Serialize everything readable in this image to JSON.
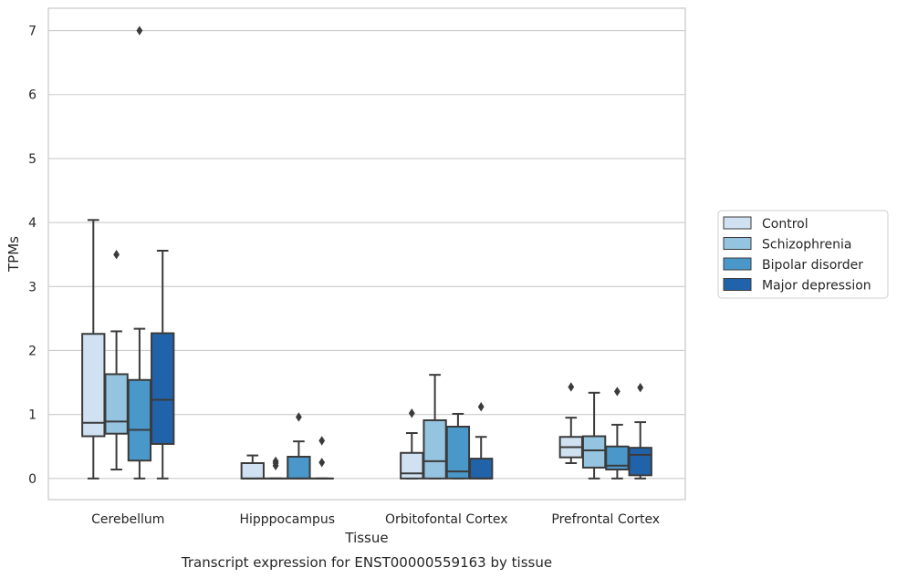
{
  "chart_data": {
    "type": "box",
    "caption": "Transcript expression for ENST00000559163 by tissue",
    "xlabel": "Tissue",
    "ylabel": "TPMs",
    "ylim": [
      -0.33,
      7.35
    ],
    "yticks": [
      0,
      1,
      2,
      3,
      4,
      5,
      6,
      7
    ],
    "grid": "horizontal",
    "legend_position": "right",
    "categories": [
      "Cerebellum",
      "Hipppocampus",
      "Orbitofontal Cortex",
      "Prefrontal Cortex"
    ],
    "series": [
      {
        "name": "Control",
        "color": "#d0e1f2",
        "boxes": [
          {
            "whislo": 0.0,
            "q1": 0.66,
            "med": 0.87,
            "q3": 2.26,
            "whishi": 4.04,
            "fliers": []
          },
          {
            "whislo": 0.0,
            "q1": 0.0,
            "med": 0.0,
            "q3": 0.24,
            "whishi": 0.36,
            "fliers": []
          },
          {
            "whislo": 0.0,
            "q1": 0.0,
            "med": 0.08,
            "q3": 0.4,
            "whishi": 0.71,
            "fliers": [
              1.02
            ]
          },
          {
            "whislo": 0.24,
            "q1": 0.33,
            "med": 0.49,
            "q3": 0.65,
            "whishi": 0.95,
            "fliers": [
              1.43
            ]
          }
        ]
      },
      {
        "name": "Schizophrenia",
        "color": "#94c4df",
        "boxes": [
          {
            "whislo": 0.14,
            "q1": 0.7,
            "med": 0.89,
            "q3": 1.63,
            "whishi": 2.3,
            "fliers": [
              3.5
            ]
          },
          {
            "whislo": 0.0,
            "q1": 0.0,
            "med": 0.0,
            "q3": 0.0,
            "whishi": 0.0,
            "fliers": [
              0.2,
              0.24,
              0.27
            ]
          },
          {
            "whislo": 0.0,
            "q1": 0.0,
            "med": 0.27,
            "q3": 0.91,
            "whishi": 1.62,
            "fliers": []
          },
          {
            "whislo": 0.0,
            "q1": 0.17,
            "med": 0.44,
            "q3": 0.66,
            "whishi": 1.34,
            "fliers": []
          }
        ]
      },
      {
        "name": "Bipolar disorder",
        "color": "#4a98c9",
        "boxes": [
          {
            "whislo": 0.0,
            "q1": 0.28,
            "med": 0.76,
            "q3": 1.54,
            "whishi": 2.34,
            "fliers": [
              7.0
            ]
          },
          {
            "whislo": 0.0,
            "q1": 0.0,
            "med": 0.0,
            "q3": 0.34,
            "whishi": 0.58,
            "fliers": [
              0.96
            ]
          },
          {
            "whislo": 0.0,
            "q1": 0.0,
            "med": 0.11,
            "q3": 0.81,
            "whishi": 1.01,
            "fliers": []
          },
          {
            "whislo": 0.0,
            "q1": 0.14,
            "med": 0.2,
            "q3": 0.5,
            "whishi": 0.84,
            "fliers": [
              1.36
            ]
          }
        ]
      },
      {
        "name": "Major depression",
        "color": "#2163aa",
        "boxes": [
          {
            "whislo": 0.0,
            "q1": 0.54,
            "med": 1.23,
            "q3": 2.27,
            "whishi": 3.56,
            "fliers": []
          },
          {
            "whislo": 0.0,
            "q1": 0.0,
            "med": 0.0,
            "q3": 0.0,
            "whishi": 0.0,
            "fliers": [
              0.25,
              0.59
            ]
          },
          {
            "whislo": 0.0,
            "q1": 0.0,
            "med": 0.0,
            "q3": 0.31,
            "whishi": 0.65,
            "fliers": [
              1.12
            ]
          },
          {
            "whislo": 0.0,
            "q1": 0.05,
            "med": 0.37,
            "q3": 0.48,
            "whishi": 0.88,
            "fliers": [
              1.42
            ]
          }
        ]
      }
    ]
  }
}
